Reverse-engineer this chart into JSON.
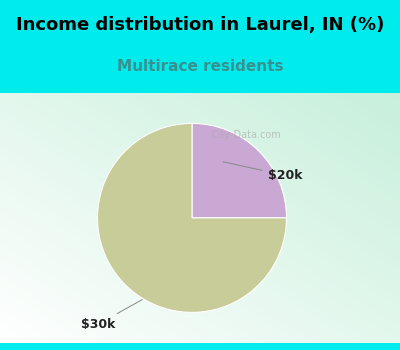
{
  "title": "Income distribution in Laurel, IN (%)",
  "subtitle": "Multirace residents",
  "title_fontsize": 13,
  "subtitle_fontsize": 11,
  "background_color": "#00ECEC",
  "chart_bg_top_right": "#FFFFFF",
  "chart_bg_bottom_left": "#C8F0DC",
  "slices": [
    {
      "label": "$20k",
      "value": 25,
      "color": "#C9A8D4"
    },
    {
      "label": "$30k",
      "value": 75,
      "color": "#C8CC99"
    }
  ],
  "watermark": "City-Data.com",
  "subtitle_color": "#3A9090",
  "title_color": "#000000",
  "label_fontsize": 9,
  "label_color": "#222222"
}
